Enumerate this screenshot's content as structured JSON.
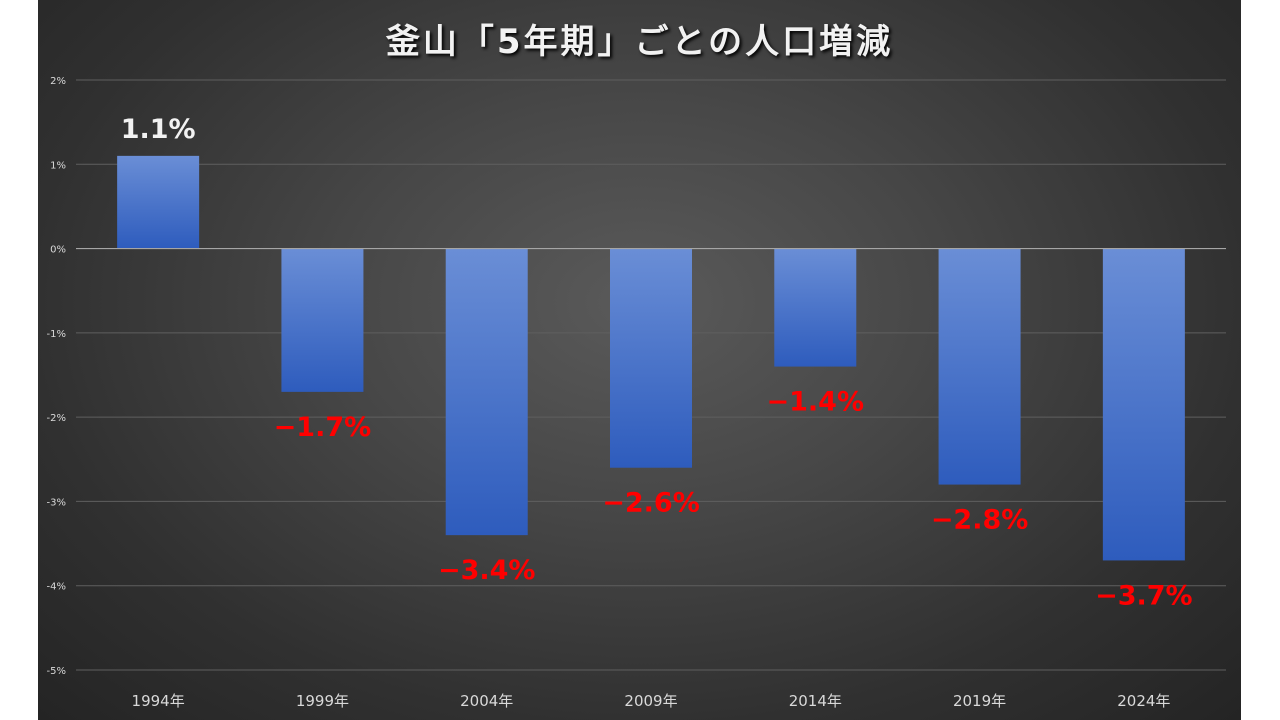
{
  "chart_data": {
    "type": "bar",
    "title": "釜山「5年期」ごとの人口増減",
    "categories": [
      "1994年",
      "1999年",
      "2004年",
      "2009年",
      "2014年",
      "2019年",
      "2024年"
    ],
    "values": [
      1.1,
      -1.7,
      -3.4,
      -2.6,
      -1.4,
      -2.8,
      -3.7
    ],
    "data_labels": [
      "1.1%",
      "−1.7%",
      "−3.4%",
      "−2.6%",
      "−1.4%",
      "−2.8%",
      "−3.7%"
    ],
    "ylim": [
      -5,
      2
    ],
    "yticks": [
      2,
      1,
      0,
      -1,
      -2,
      -3,
      -4,
      -5
    ],
    "ytick_labels": [
      "2%",
      "1%",
      "0%",
      "-1%",
      "-2%",
      "-3%",
      "-4%",
      "-5%"
    ],
    "xlabel": "",
    "ylabel": "",
    "grid": true,
    "legend": false,
    "colors": {
      "bar_top": "#6a8ed6",
      "bar_bottom": "#2e5cbd",
      "positive_label": "#f2f2f2",
      "negative_label": "#ff0000",
      "gridline": "#5f5f5f",
      "zero_line": "#a6a6a6",
      "background": "#3c3c3c"
    }
  }
}
